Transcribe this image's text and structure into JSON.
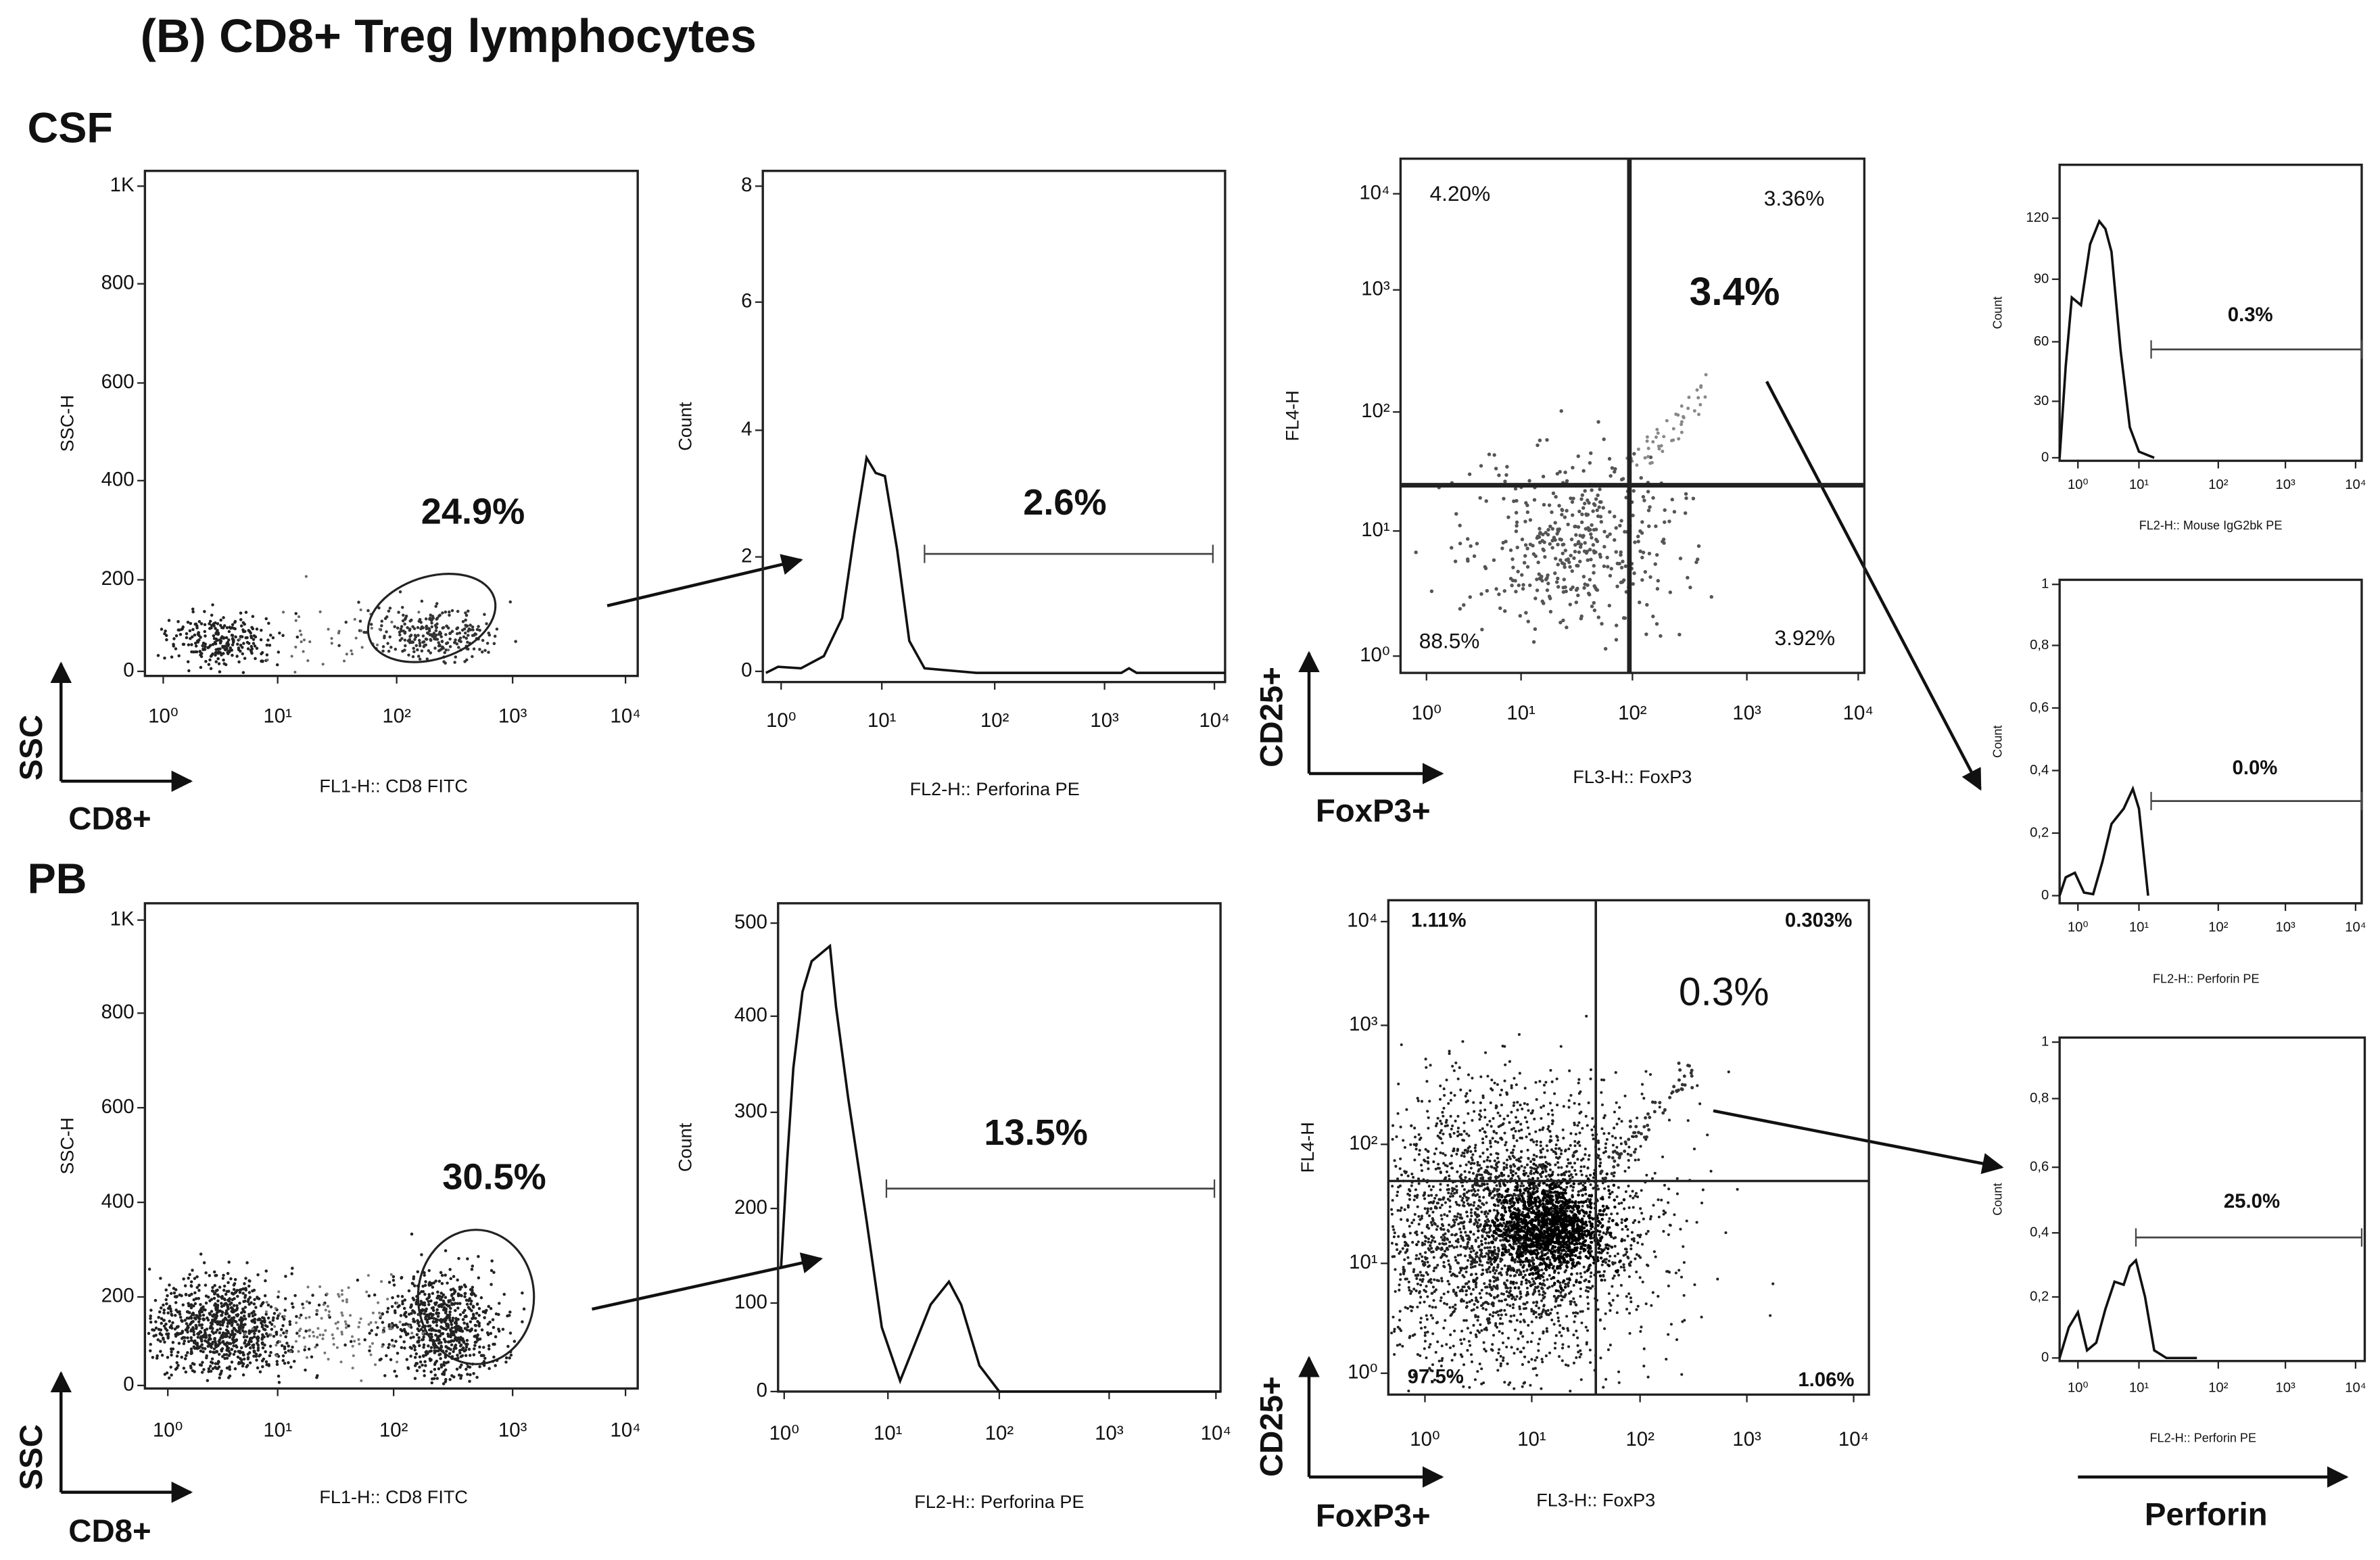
{
  "title": "(B) CD8+ Treg lymphocytes",
  "row_labels": [
    "CSF",
    "PB"
  ],
  "axis_arrows": {
    "ssc": "SSC",
    "cd8": "CD8+",
    "cd25": "CD25+",
    "foxp3": "FoxP3+",
    "perforin": "Perforin"
  },
  "panels": [
    {
      "y_label": "SSC-H",
      "x_label": "FL1-H:: CD8 FITC",
      "y_ticks": [
        "1K",
        "800",
        "600",
        "400",
        "200",
        "0"
      ],
      "x_ticks": [
        "10⁰",
        "10¹",
        "10²",
        "10³",
        "10⁴"
      ],
      "labels": [
        "24.9%"
      ]
    },
    {
      "y_label": "Count",
      "x_label": "FL2-H:: Perforina PE",
      "y_ticks": [
        "8",
        "6",
        "4",
        "2",
        "0"
      ],
      "x_ticks": [
        "10⁰",
        "10¹",
        "10²",
        "10³",
        "10⁴"
      ],
      "labels": [
        "2.6%"
      ]
    },
    {
      "y_label": "FL4-H",
      "x_label": "FL3-H:: FoxP3",
      "y_ticks": [
        "10⁴",
        "10³",
        "10²",
        "10¹",
        "10⁰"
      ],
      "x_ticks": [
        "10⁰",
        "10¹",
        "10²",
        "10³",
        "10⁴"
      ],
      "labels": [
        "4.20%",
        "3.36%",
        "3.4%",
        "88.5%",
        "3.92%"
      ]
    },
    {
      "y_label": "Count",
      "x_label": "FL2-H:: Mouse IgG2bk PE",
      "y_ticks": [
        "120",
        "90",
        "60",
        "30",
        "0"
      ],
      "x_ticks": [
        "10⁰",
        "10¹",
        "10²",
        "10³",
        "10⁴"
      ],
      "labels": [
        "0.3%"
      ]
    },
    {
      "y_label": "Count",
      "x_label": "FL2-H:: Perforin PE",
      "y_ticks": [
        "1",
        "0,8",
        "0,6",
        "0,4",
        "0,2",
        "0"
      ],
      "x_ticks": [
        "10⁰",
        "10¹",
        "10²",
        "10³",
        "10⁴"
      ],
      "labels": [
        "0.0%"
      ]
    },
    {
      "y_label": "SSC-H",
      "x_label": "FL1-H:: CD8 FITC",
      "y_ticks": [
        "1K",
        "800",
        "600",
        "400",
        "200",
        "0"
      ],
      "x_ticks": [
        "10⁰",
        "10¹",
        "10²",
        "10³",
        "10⁴"
      ],
      "labels": [
        "30.5%"
      ]
    },
    {
      "y_label": "Count",
      "x_label": "FL2-H:: Perforina PE",
      "y_ticks": [
        "500",
        "400",
        "300",
        "200",
        "100",
        "0"
      ],
      "x_ticks": [
        "10⁰",
        "10¹",
        "10²",
        "10³",
        "10⁴"
      ],
      "labels": [
        "13.5%"
      ]
    },
    {
      "y_label": "FL4-H",
      "x_label": "FL3-H:: FoxP3",
      "y_ticks": [
        "10⁴",
        "10³",
        "10²",
        "10¹",
        "10⁰"
      ],
      "x_ticks": [
        "10⁰",
        "10¹",
        "10²",
        "10³",
        "10⁴"
      ],
      "labels": [
        "1.11%",
        "0.303%",
        "0.3%",
        "97.5%",
        "1.06%"
      ]
    },
    {
      "y_label": "Count",
      "x_label": "FL2-H:: Perforin PE",
      "y_ticks": [
        "1",
        "0,8",
        "0,6",
        "0,4",
        "0,2",
        "0"
      ],
      "x_ticks": [
        "10⁰",
        "10¹",
        "10²",
        "10³",
        "10⁴"
      ],
      "labels": [
        "25.0%"
      ]
    }
  ]
}
